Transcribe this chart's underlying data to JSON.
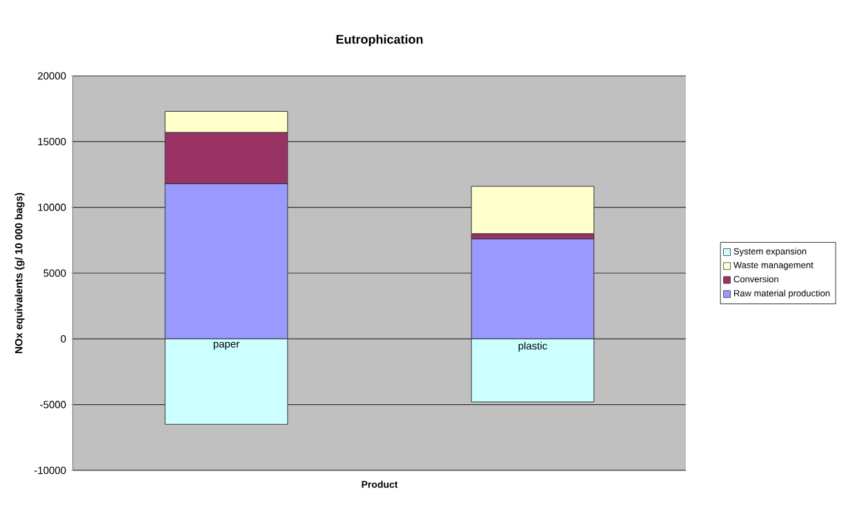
{
  "chart_data": {
    "type": "bar",
    "stacked": true,
    "title": "Eutrophication",
    "xlabel": "Product",
    "ylabel": "NOx equivalents (g/ 10 000 bags)",
    "categories": [
      "paper",
      "plastic"
    ],
    "series": [
      {
        "name": "Raw material production",
        "color": "#9999ff",
        "values": [
          11800,
          7600
        ]
      },
      {
        "name": "Conversion",
        "color": "#993366",
        "values": [
          3900,
          400
        ]
      },
      {
        "name": "Waste management",
        "color": "#ffffcc",
        "values": [
          1600,
          3600
        ]
      },
      {
        "name": "System expansion",
        "color": "#ccffff",
        "values": [
          -6500,
          -4800
        ]
      }
    ],
    "ylim": [
      -10000,
      20000
    ],
    "yticks": [
      -10000,
      -5000,
      0,
      5000,
      10000,
      15000,
      20000
    ],
    "grid": "y",
    "legend": "right"
  }
}
